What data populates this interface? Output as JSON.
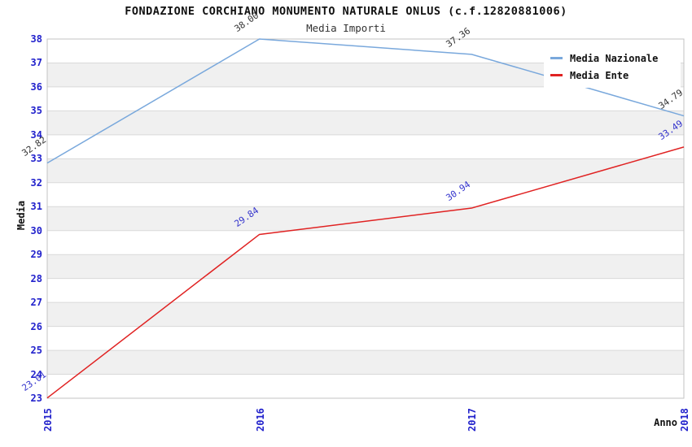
{
  "chart_data": {
    "type": "line",
    "title": "FONDAZIONE CORCHIANO MONUMENTO NATURALE ONLUS (c.f.12820881006)",
    "subtitle": "Media Importi",
    "xlabel": "Anno",
    "ylabel": "Media",
    "x": [
      "2015",
      "2016",
      "2017",
      "2018"
    ],
    "ylim": [
      23,
      38
    ],
    "ytick_step": 1,
    "grid": "horizontal-bands",
    "legend_position": "top-right",
    "series": [
      {
        "name": "Media Nazionale",
        "color": "#79a8dc",
        "label_color": "#333333",
        "values": [
          32.82,
          38.0,
          37.36,
          34.79
        ]
      },
      {
        "name": "Media Ente",
        "color": "#e02222",
        "label_color": "#3333cc",
        "values": [
          23.01,
          29.84,
          30.94,
          33.49
        ]
      }
    ],
    "colors": {
      "axis_tick": "#2222cc",
      "band": "#f0f0f0",
      "gridline": "#d9d9d9",
      "border": "#c3c3c3"
    }
  }
}
